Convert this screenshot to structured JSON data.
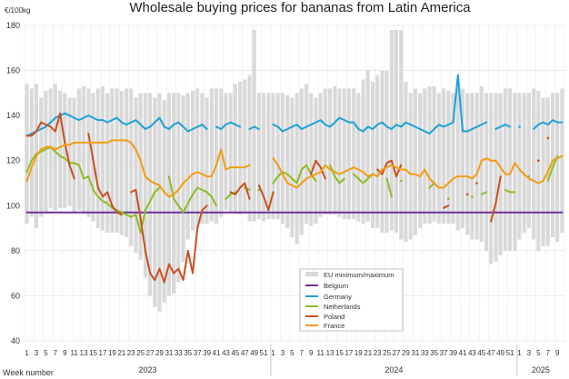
{
  "chart_data": {
    "type": "line",
    "title": "Wholesale buying prices for bananas from Latin America",
    "ylabel": "€/100kg",
    "xlabel": "Week number",
    "ylim": [
      40,
      180
    ],
    "yticks": [
      40,
      60,
      80,
      100,
      120,
      140,
      160,
      180
    ],
    "grid": true,
    "legend_position": "bottom-center",
    "years": [
      {
        "label": "2023",
        "start": 0,
        "end": 52
      },
      {
        "label": "2024",
        "start": 52,
        "end": 104
      },
      {
        "label": "2025",
        "start": 104,
        "end": 114
      }
    ],
    "x_tick_labels": [
      "1",
      "3",
      "5",
      "7",
      "9",
      "11",
      "13",
      "15",
      "17",
      "19",
      "21",
      "23",
      "25",
      "27",
      "29",
      "31",
      "33",
      "35",
      "37",
      "39",
      "41",
      "43",
      "45",
      "47",
      "49",
      "51",
      "1",
      "3",
      "5",
      "7",
      "9",
      "11",
      "13",
      "15",
      "17",
      "19",
      "21",
      "23",
      "25",
      "27",
      "29",
      "31",
      "33",
      "35",
      "37",
      "39",
      "41",
      "43",
      "45",
      "47",
      "49",
      "51",
      "1",
      "3",
      "5",
      "7",
      "9"
    ],
    "band": {
      "name": "EU minimum/maximum",
      "color": "#d9d9d9",
      "min": [
        92,
        95,
        90,
        95,
        97,
        99,
        98,
        99,
        99,
        100,
        97,
        98,
        97,
        95,
        93,
        90,
        89,
        88,
        88,
        88,
        87,
        86,
        82,
        79,
        76,
        68,
        60,
        55,
        53,
        57,
        60,
        61,
        66,
        75,
        85,
        89,
        90,
        92,
        92,
        93,
        92,
        95,
        98,
        97,
        97,
        96,
        97,
        93,
        93,
        94,
        93,
        94,
        94,
        94,
        92,
        90,
        86,
        83,
        87,
        92,
        91,
        92,
        95,
        96,
        96,
        96,
        95,
        94,
        94,
        94,
        93,
        92,
        93,
        90,
        90,
        88,
        88,
        89,
        88,
        85,
        84,
        85,
        87,
        90,
        92,
        92,
        93,
        92,
        92,
        92,
        92,
        89,
        90,
        87,
        85,
        85,
        84,
        80,
        74,
        75,
        78,
        80,
        80,
        80,
        85,
        88,
        90,
        85,
        80,
        82,
        82,
        86,
        84,
        88
      ],
      "max": [
        154,
        152,
        154,
        148,
        151,
        152,
        154,
        151,
        150,
        148,
        148,
        152,
        153,
        152,
        150,
        152,
        153,
        150,
        152,
        152,
        151,
        152,
        152,
        148,
        150,
        150,
        150,
        148,
        150,
        147,
        150,
        150,
        150,
        149,
        150,
        151,
        152,
        150,
        148,
        152,
        152,
        152,
        150,
        150,
        154,
        155,
        156,
        158,
        178,
        150,
        150,
        150,
        150,
        150,
        150,
        149,
        148,
        150,
        152,
        154,
        150,
        148,
        150,
        152,
        152,
        153,
        152,
        152,
        152,
        152,
        150,
        156,
        160,
        155,
        158,
        160,
        160,
        178,
        178,
        178,
        155,
        150,
        152,
        150,
        152,
        153,
        153,
        150,
        152,
        151,
        150,
        152,
        152,
        150,
        150,
        150,
        153,
        150,
        150,
        150,
        150,
        152,
        152,
        150,
        150,
        150,
        150,
        152,
        151,
        148,
        148,
        150,
        150,
        152
      ]
    },
    "series": [
      {
        "name": "Belgium",
        "color": "#7030a0",
        "values": [
          97,
          97,
          97,
          97,
          97,
          97,
          97,
          97,
          97,
          97,
          97,
          97,
          97,
          97,
          97,
          97,
          97,
          97,
          97,
          97,
          97,
          97,
          97,
          97,
          97,
          97,
          97,
          97,
          97,
          97,
          97,
          97,
          97,
          97,
          97,
          97,
          97,
          97,
          97,
          97,
          97,
          97,
          97,
          97,
          97,
          97,
          97,
          97,
          97,
          97,
          97,
          97,
          97,
          97,
          97,
          97,
          97,
          97,
          97,
          97,
          97,
          97,
          97,
          97,
          97,
          97,
          97,
          97,
          97,
          97,
          97,
          97,
          97,
          97,
          97,
          97,
          97,
          97,
          97,
          97,
          97,
          97,
          97,
          97,
          97,
          97,
          97,
          97,
          97,
          97,
          97,
          97,
          97,
          97,
          97,
          97,
          97,
          97,
          97,
          97,
          97,
          97,
          97,
          97,
          97,
          97,
          97,
          97,
          97,
          97,
          97,
          97,
          97,
          97
        ]
      },
      {
        "name": "Germany",
        "color": "#1ba1d8",
        "values": [
          131,
          132,
          133,
          134,
          135,
          137,
          139,
          140,
          141,
          140,
          139,
          138,
          139,
          140,
          139,
          138,
          138,
          137,
          138,
          139,
          137,
          136,
          137,
          138,
          136,
          134,
          135,
          137,
          139,
          135,
          134,
          136,
          137,
          135,
          133,
          134,
          135,
          136,
          134,
          null,
          135,
          134,
          136,
          137,
          136,
          135,
          null,
          134,
          135,
          134,
          null,
          null,
          136,
          135,
          133,
          134,
          135,
          136,
          134,
          135,
          136,
          137,
          138,
          136,
          135,
          137,
          139,
          138,
          137,
          137,
          134,
          133,
          135,
          134,
          136,
          137,
          135,
          134,
          136,
          135,
          137,
          136,
          135,
          134,
          133,
          132,
          134,
          136,
          135,
          136,
          137,
          158,
          133,
          133,
          134,
          135,
          136,
          137,
          null,
          134,
          135,
          136,
          135,
          null,
          135,
          null,
          null,
          134,
          136,
          137,
          136,
          138,
          137,
          137
        ]
      },
      {
        "name": "Netherlands",
        "color": "#8fbc23",
        "values": [
          115,
          120,
          123,
          124,
          125,
          126,
          124,
          122,
          121,
          119,
          119,
          118,
          112,
          113,
          107,
          104,
          102,
          101,
          99,
          98,
          97,
          96,
          95,
          96,
          88,
          98,
          102,
          106,
          108,
          null,
          113,
          103,
          100,
          97,
          101,
          105,
          108,
          107,
          106,
          104,
          100,
          null,
          103,
          105,
          106,
          null,
          108,
          107,
          null,
          107,
          null,
          null,
          110,
          113,
          115,
          114,
          112,
          110,
          116,
          118,
          114,
          111,
          null,
          null,
          118,
          113,
          110,
          112,
          null,
          114,
          112,
          110,
          112,
          114,
          113,
          null,
          112,
          104,
          null,
          111,
          null,
          null,
          null,
          null,
          null,
          108,
          110,
          null,
          null,
          103,
          null,
          null,
          null,
          null,
          104,
          null,
          105,
          106,
          null,
          null,
          null,
          107,
          106,
          106,
          null,
          null,
          113,
          null,
          null,
          null,
          111,
          117,
          122,
          null
        ]
      },
      {
        "name": "Poland",
        "color": "#c8501e",
        "values": [
          131,
          131,
          133,
          137,
          136,
          135,
          133,
          141,
          128,
          118,
          112,
          null,
          null,
          132,
          120,
          108,
          104,
          106,
          100,
          97,
          96,
          null,
          106,
          107,
          94,
          80,
          70,
          67,
          72,
          66,
          74,
          70,
          72,
          67,
          80,
          70,
          90,
          98,
          100,
          null,
          null,
          null,
          null,
          106,
          105,
          108,
          110,
          103,
          null,
          109,
          104,
          98,
          106,
          null,
          null,
          null,
          null,
          null,
          null,
          null,
          114,
          120,
          117,
          112,
          null,
          null,
          null,
          null,
          null,
          null,
          null,
          null,
          null,
          null,
          116,
          114,
          119,
          120,
          113,
          118,
          null,
          null,
          null,
          null,
          null,
          null,
          null,
          null,
          99,
          100,
          null,
          null,
          null,
          105,
          null,
          110,
          null,
          null,
          93,
          101,
          113,
          null,
          null,
          null,
          null,
          null,
          null,
          null,
          120,
          null,
          130,
          null,
          null,
          null
        ]
      },
      {
        "name": "France",
        "color": "#f39c12",
        "values": [
          111,
          117,
          122,
          125,
          126,
          126,
          125,
          126,
          127,
          127,
          128,
          128,
          128,
          128,
          128,
          128,
          128,
          128,
          129,
          129,
          129,
          129,
          128,
          125,
          120,
          113,
          111,
          110,
          109,
          106,
          104,
          105,
          107,
          110,
          112,
          114,
          115,
          114,
          113,
          113,
          118,
          125,
          116,
          117,
          117,
          117,
          117,
          118,
          null,
          null,
          null,
          null,
          121,
          118,
          114,
          110,
          109,
          108,
          110,
          112,
          113,
          114,
          115,
          118,
          116,
          115,
          114,
          115,
          116,
          117,
          116,
          115,
          113,
          114,
          113,
          116,
          117,
          118,
          117,
          116,
          116,
          114,
          114,
          113,
          116,
          112,
          110,
          108,
          108,
          110,
          112,
          113,
          113,
          113,
          112,
          114,
          120,
          121,
          120,
          120,
          117,
          114,
          114,
          119,
          116,
          114,
          112,
          111,
          110,
          111,
          115,
          120,
          121,
          122
        ]
      }
    ]
  }
}
